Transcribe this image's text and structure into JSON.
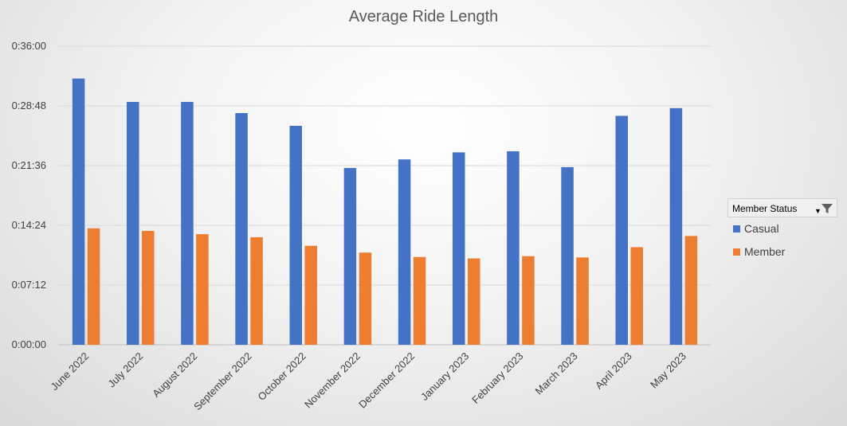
{
  "chart_data": {
    "type": "bar",
    "title": "Average Ride Length",
    "xlabel": "",
    "ylabel": "",
    "categories": [
      "June 2022",
      "July 2022",
      "August 2022",
      "September 2022",
      "October 2022",
      "November 2022",
      "December 2022",
      "January 2023",
      "February 2023",
      "March 2023",
      "April 2023",
      "May 2023"
    ],
    "y_ticks": [
      "0:00:00",
      "0:07:12",
      "0:14:24",
      "0:21:36",
      "0:28:48",
      "0:36:00"
    ],
    "ylim_seconds": [
      0,
      2160
    ],
    "grid": true,
    "legend_position": "right",
    "series": [
      {
        "name": "Casual",
        "color": "#4472c4",
        "values_seconds": [
          1926,
          1757,
          1757,
          1676,
          1584,
          1279,
          1341,
          1392,
          1400,
          1285,
          1656,
          1712
        ]
      },
      {
        "name": "Member",
        "color": "#ed7d31",
        "values_seconds": [
          842,
          824,
          800,
          778,
          716,
          667,
          635,
          625,
          641,
          632,
          706,
          787
        ]
      }
    ]
  },
  "legend": {
    "header": "Member Status",
    "dropdown_icon": "dropdown-arrow-icon",
    "filter_icon": "filter-icon"
  }
}
